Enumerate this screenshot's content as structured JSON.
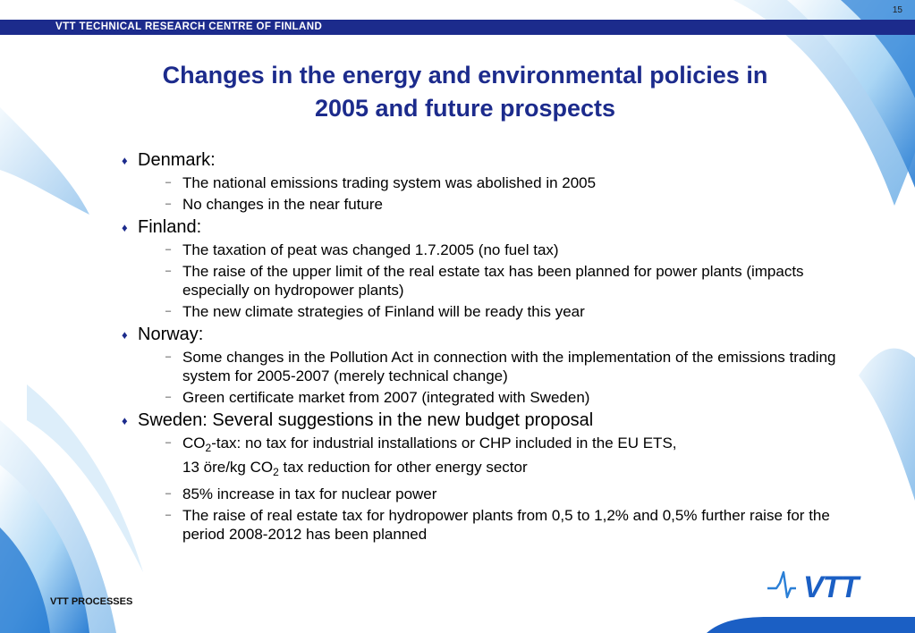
{
  "page": {
    "number": "15"
  },
  "header": {
    "org": "VTT TECHNICAL RESEARCH CENTRE OF FINLAND"
  },
  "slide": {
    "title_line1": "Changes in the energy and environmental policies in",
    "title_line2": "2005 and future prospects"
  },
  "sections": [
    {
      "heading": "Denmark:",
      "items": [
        "The national emissions trading system was abolished in 2005",
        "No changes in the near future"
      ]
    },
    {
      "heading": "Finland:",
      "items": [
        "The taxation of peat was changed 1.7.2005 (no fuel tax)",
        "The raise of the upper limit of the real estate tax has been planned for power plants (impacts especially on hydropower plants)",
        "The new climate strategies of Finland will be ready this year"
      ]
    },
    {
      "heading": "Norway:",
      "items": [
        "Some changes in the Pollution Act in connection with the implementation of the emissions trading system for 2005-2007 (merely technical change)",
        "Green certificate market from 2007 (integrated with Sweden)"
      ]
    },
    {
      "heading": "Sweden: Several suggestions in the new budget proposal",
      "co2_item": {
        "a": "CO",
        "sub1": "2",
        "b": "-tax: no tax for industrial installations or CHP included in the EU ETS,",
        "c": "13  öre/kg CO",
        "sub2": "2",
        "d": " tax reduction for other energy sector"
      },
      "items": [
        "85% increase in tax for nuclear power",
        "The raise of real estate tax for hydropower plants from 0,5 to 1,2% and 0,5% further raise for the period 2008-2012 has been planned"
      ]
    }
  ],
  "footer": {
    "label": "VTT PROCESSES"
  },
  "logo": {
    "name": "vtt-logo",
    "text": "VTT"
  },
  "colors": {
    "brand_blue": "#1c2b8c",
    "swoosh_blue": "#2a7fd6",
    "light_blue": "#b8dcf4"
  },
  "icons": {
    "level1_bullet": "diamond-bullet-icon",
    "level2_bullet": "dash-bullet-icon"
  }
}
